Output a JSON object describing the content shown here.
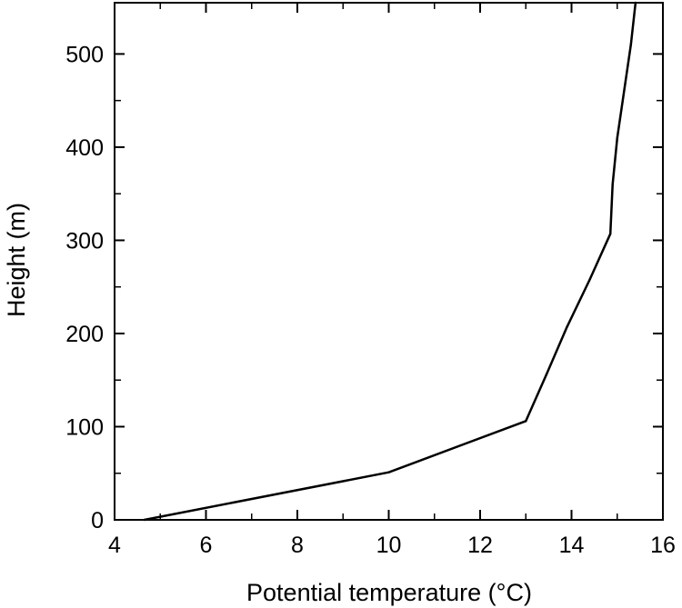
{
  "chart_data": {
    "type": "line",
    "title": "",
    "xlabel": "Potential temperature (°C)",
    "ylabel": "Height (m)",
    "xlim": [
      4,
      16
    ],
    "ylim": [
      0,
      555
    ],
    "xticks": [
      4,
      6,
      8,
      10,
      12,
      14,
      16
    ],
    "xtick_labels": [
      "4",
      "6",
      "8",
      "10",
      "12",
      "14",
      "16"
    ],
    "yticks": [
      0,
      100,
      200,
      300,
      400,
      500
    ],
    "ytick_labels": [
      "0",
      "100",
      "200",
      "300",
      "400",
      "500"
    ],
    "grid": false,
    "series": [
      {
        "color": "#000000",
        "x": [
          4.65,
          10.0,
          13.0,
          13.45,
          13.9,
          14.4,
          14.85,
          14.9,
          15.0,
          15.3,
          15.4
        ],
        "y": [
          0,
          51,
          106,
          156,
          207,
          258,
          307,
          360,
          410,
          510,
          555
        ]
      }
    ]
  }
}
